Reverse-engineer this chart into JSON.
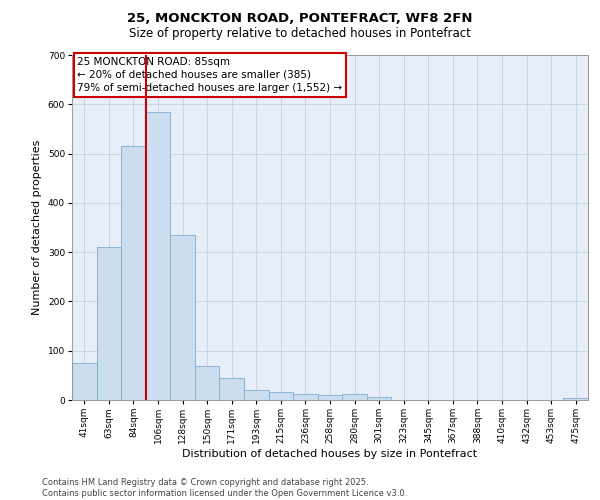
{
  "title_line1": "25, MONCKTON ROAD, PONTEFRACT, WF8 2FN",
  "title_line2": "Size of property relative to detached houses in Pontefract",
  "xlabel": "Distribution of detached houses by size in Pontefract",
  "ylabel": "Number of detached properties",
  "categories": [
    "41sqm",
    "63sqm",
    "84sqm",
    "106sqm",
    "128sqm",
    "150sqm",
    "171sqm",
    "193sqm",
    "215sqm",
    "236sqm",
    "258sqm",
    "280sqm",
    "301sqm",
    "323sqm",
    "345sqm",
    "367sqm",
    "388sqm",
    "410sqm",
    "432sqm",
    "453sqm",
    "475sqm"
  ],
  "values": [
    75,
    310,
    515,
    585,
    335,
    70,
    44,
    20,
    16,
    12,
    10,
    12,
    7,
    0,
    0,
    0,
    0,
    0,
    0,
    0,
    5
  ],
  "bar_color": "#ccddf0",
  "bar_edge_color": "#7bafd4",
  "vline_color": "#cc0000",
  "vline_x": 2.5,
  "annotation_text": "25 MONCKTON ROAD: 85sqm\n← 20% of detached houses are smaller (385)\n79% of semi-detached houses are larger (1,552) →",
  "annotation_box_color": "#cc0000",
  "ylim": [
    0,
    700
  ],
  "yticks": [
    0,
    100,
    200,
    300,
    400,
    500,
    600,
    700
  ],
  "grid_color": "#c8d4e8",
  "background_color": "#e8eef8",
  "footer_line1": "Contains HM Land Registry data © Crown copyright and database right 2025.",
  "footer_line2": "Contains public sector information licensed under the Open Government Licence v3.0.",
  "title_fontsize": 9.5,
  "subtitle_fontsize": 8.5,
  "axis_label_fontsize": 8,
  "tick_fontsize": 6.5,
  "annotation_fontsize": 7.5,
  "footer_fontsize": 6
}
